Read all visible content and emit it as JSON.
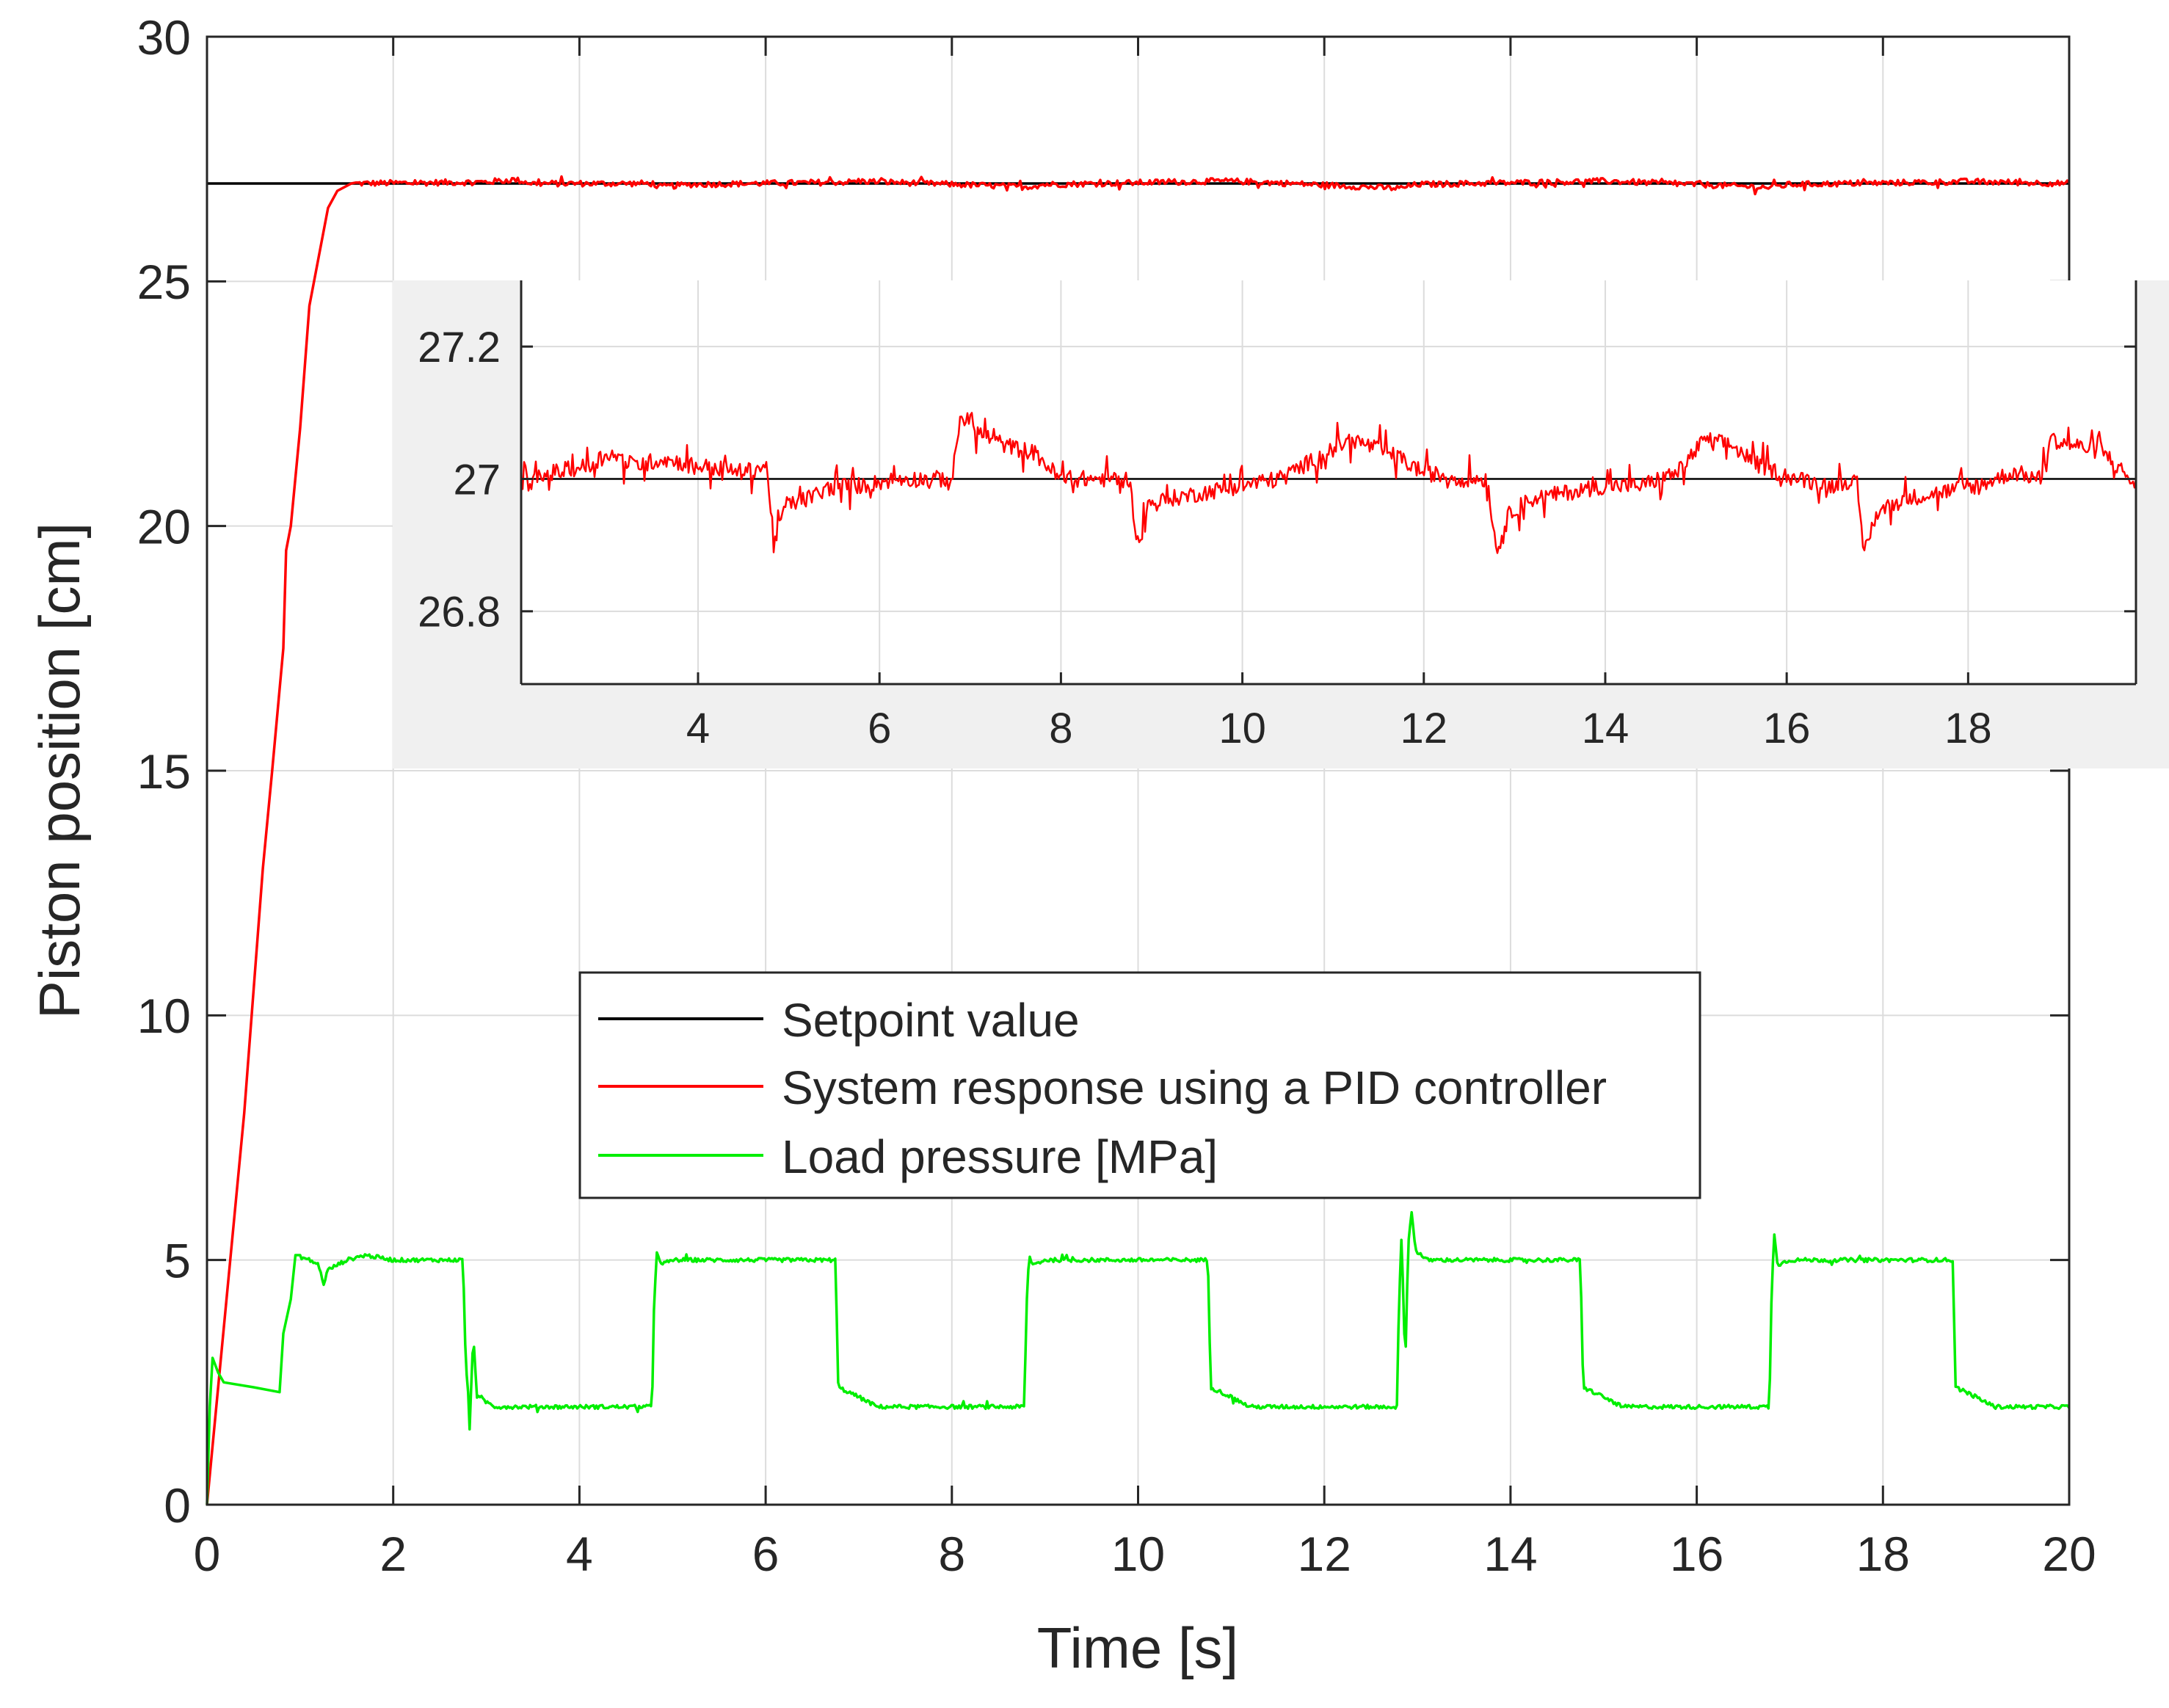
{
  "chart_data": [
    {
      "id": "main",
      "type": "line",
      "title": "",
      "xlabel": "Time [s]",
      "ylabel": "Piston position [cm]",
      "xlim": [
        0,
        20
      ],
      "ylim": [
        0,
        30
      ],
      "xticks": [
        0,
        2,
        4,
        6,
        8,
        10,
        12,
        14,
        16,
        18,
        20
      ],
      "xtick_labels": [
        "0",
        "2",
        "4",
        "6",
        "8",
        "10",
        "12",
        "14",
        "16",
        "18",
        "20"
      ],
      "yticks": [
        0,
        5,
        10,
        15,
        20,
        25,
        30
      ],
      "ytick_labels": [
        "0",
        "5",
        "10",
        "15",
        "20",
        "25",
        "30"
      ],
      "grid": true,
      "legend_position": "center",
      "series": [
        {
          "name": "Setpoint value",
          "color": "#000000",
          "points": [
            [
              0,
              27
            ],
            [
              20,
              27
            ]
          ]
        },
        {
          "name": "System response using a PID controller",
          "color": "#ff0000",
          "points": [
            [
              0,
              0
            ],
            [
              0.15,
              3
            ],
            [
              0.4,
              8
            ],
            [
              0.6,
              13
            ],
            [
              0.7,
              15
            ],
            [
              0.82,
              17.5
            ],
            [
              0.85,
              19.5
            ],
            [
              0.9,
              20
            ],
            [
              1.0,
              22
            ],
            [
              1.1,
              24.5
            ],
            [
              1.2,
              25.5
            ],
            [
              1.3,
              26.5
            ],
            [
              1.4,
              26.85
            ],
            [
              1.55,
              27
            ],
            [
              3,
              27.03
            ],
            [
              3.3,
              27.08
            ],
            [
              3.5,
              27
            ],
            [
              4.8,
              27
            ],
            [
              4.85,
              26.93
            ],
            [
              5.2,
              26.98
            ],
            [
              6.9,
              27.03
            ],
            [
              7.0,
              27.05
            ],
            [
              8.8,
              26.93
            ],
            [
              9.0,
              26.98
            ],
            [
              10.9,
              27.05
            ],
            [
              11.3,
              27.03
            ],
            [
              12.8,
              26.9
            ],
            [
              13.0,
              26.98
            ],
            [
              15.0,
              27.05
            ],
            [
              15.3,
              27.03
            ],
            [
              16.8,
              26.92
            ],
            [
              17.0,
              26.98
            ],
            [
              18.9,
              27.04
            ],
            [
              20,
              27
            ]
          ]
        },
        {
          "name": "Load pressure [MPa]",
          "color": "#00ee00",
          "points": [
            [
              0,
              0
            ],
            [
              0.03,
              2
            ],
            [
              0.06,
              3
            ],
            [
              0.12,
              2.7
            ],
            [
              0.18,
              2.5
            ],
            [
              0.5,
              2.4
            ],
            [
              0.78,
              2.3
            ],
            [
              0.82,
              3.5
            ],
            [
              0.9,
              4.2
            ],
            [
              0.95,
              5.1
            ],
            [
              1.1,
              5
            ],
            [
              1.2,
              4.9
            ],
            [
              1.25,
              4.5
            ],
            [
              1.3,
              4.8
            ],
            [
              1.5,
              5
            ],
            [
              1.7,
              5.1
            ],
            [
              2.0,
              5
            ],
            [
              2.75,
              5
            ],
            [
              2.78,
              2.8
            ],
            [
              2.8,
              2.5
            ],
            [
              2.82,
              1.5
            ],
            [
              2.86,
              3.5
            ],
            [
              2.9,
              2.2
            ],
            [
              3.1,
              2
            ],
            [
              4.78,
              2
            ],
            [
              4.8,
              4
            ],
            [
              4.83,
              5.2
            ],
            [
              4.87,
              4.9
            ],
            [
              5.0,
              5
            ],
            [
              6.75,
              5
            ],
            [
              6.78,
              2.4
            ],
            [
              7.0,
              2.2
            ],
            [
              7.2,
              2
            ],
            [
              8.78,
              2
            ],
            [
              8.8,
              4
            ],
            [
              8.83,
              5.1
            ],
            [
              8.87,
              4.9
            ],
            [
              9.0,
              5
            ],
            [
              10.75,
              5
            ],
            [
              10.78,
              2.4
            ],
            [
              11.0,
              2.2
            ],
            [
              11.2,
              2
            ],
            [
              12.78,
              2
            ],
            [
              12.8,
              4
            ],
            [
              12.83,
              5.5
            ],
            [
              12.87,
              2.8
            ],
            [
              12.9,
              5.3
            ],
            [
              12.94,
              6
            ],
            [
              12.98,
              5.2
            ],
            [
              13.1,
              5
            ],
            [
              14.75,
              5
            ],
            [
              14.78,
              2.4
            ],
            [
              15.0,
              2.2
            ],
            [
              15.2,
              2
            ],
            [
              16.78,
              2
            ],
            [
              16.8,
              4
            ],
            [
              16.83,
              5.6
            ],
            [
              16.87,
              4.9
            ],
            [
              17.0,
              5
            ],
            [
              18.75,
              5
            ],
            [
              18.78,
              2.4
            ],
            [
              19.0,
              2.2
            ],
            [
              19.2,
              2
            ],
            [
              20,
              2
            ]
          ]
        }
      ]
    },
    {
      "id": "inset",
      "type": "line",
      "title": "",
      "xlabel": "",
      "ylabel": "",
      "xlim": [
        2.05,
        19.85
      ],
      "ylim": [
        26.69,
        27.3
      ],
      "xticks": [
        4,
        6,
        8,
        10,
        12,
        14,
        16,
        18
      ],
      "xtick_labels": [
        "4",
        "6",
        "8",
        "10",
        "12",
        "14",
        "16",
        "18"
      ],
      "yticks": [
        26.8,
        27,
        27.2
      ],
      "ytick_labels": [
        "26.8",
        "27",
        "27.2"
      ],
      "grid": true,
      "series": [
        {
          "name": "Setpoint value",
          "color": "#000000",
          "points": [
            [
              2.05,
              27
            ],
            [
              19.85,
              27
            ]
          ]
        },
        {
          "name": "System response using a PID controller",
          "color": "#ff0000",
          "points": [
            [
              2.05,
              26.99
            ],
            [
              2.4,
              27.01
            ],
            [
              2.8,
              27.02
            ],
            [
              3.0,
              27.04
            ],
            [
              3.3,
              27.02
            ],
            [
              3.6,
              27.03
            ],
            [
              4.0,
              27.02
            ],
            [
              4.5,
              27.01
            ],
            [
              4.75,
              27.02
            ],
            [
              4.85,
              26.9
            ],
            [
              4.95,
              26.96
            ],
            [
              5.2,
              26.97
            ],
            [
              5.5,
              26.99
            ],
            [
              5.8,
              26.99
            ],
            [
              6.2,
              27.0
            ],
            [
              6.6,
              27.0
            ],
            [
              6.8,
              27.0
            ],
            [
              6.9,
              27.1
            ],
            [
              7.1,
              27.07
            ],
            [
              7.4,
              27.05
            ],
            [
              7.7,
              27.04
            ],
            [
              8.0,
              27.0
            ],
            [
              8.4,
              27.0
            ],
            [
              8.75,
              27.0
            ],
            [
              8.85,
              26.9
            ],
            [
              8.95,
              26.96
            ],
            [
              9.2,
              26.97
            ],
            [
              9.6,
              26.98
            ],
            [
              10.0,
              26.99
            ],
            [
              10.4,
              27.0
            ],
            [
              10.8,
              27.03
            ],
            [
              11.2,
              27.06
            ],
            [
              11.6,
              27.04
            ],
            [
              12.0,
              27.01
            ],
            [
              12.4,
              27.0
            ],
            [
              12.7,
              27.0
            ],
            [
              12.8,
              26.89
            ],
            [
              12.95,
              26.95
            ],
            [
              13.2,
              26.97
            ],
            [
              13.6,
              26.98
            ],
            [
              14.0,
              26.99
            ],
            [
              14.4,
              26.99
            ],
            [
              14.8,
              27.01
            ],
            [
              15.1,
              27.06
            ],
            [
              15.4,
              27.05
            ],
            [
              15.7,
              27.02
            ],
            [
              16.1,
              27.0
            ],
            [
              16.5,
              26.99
            ],
            [
              16.75,
              27.0
            ],
            [
              16.85,
              26.89
            ],
            [
              17.0,
              26.95
            ],
            [
              17.3,
              26.97
            ],
            [
              17.7,
              26.98
            ],
            [
              18.1,
              26.99
            ],
            [
              18.5,
              27.01
            ],
            [
              18.8,
              27.0
            ],
            [
              18.9,
              27.06
            ],
            [
              19.2,
              27.05
            ],
            [
              19.5,
              27.04
            ],
            [
              19.85,
              26.99
            ]
          ]
        }
      ]
    }
  ],
  "legend": {
    "items": [
      {
        "label": "Setpoint value",
        "color": "#000000"
      },
      {
        "label": "System response using a PID controller",
        "color": "#ff0000"
      },
      {
        "label": "Load pressure [MPa]",
        "color": "#00ee00"
      }
    ]
  }
}
